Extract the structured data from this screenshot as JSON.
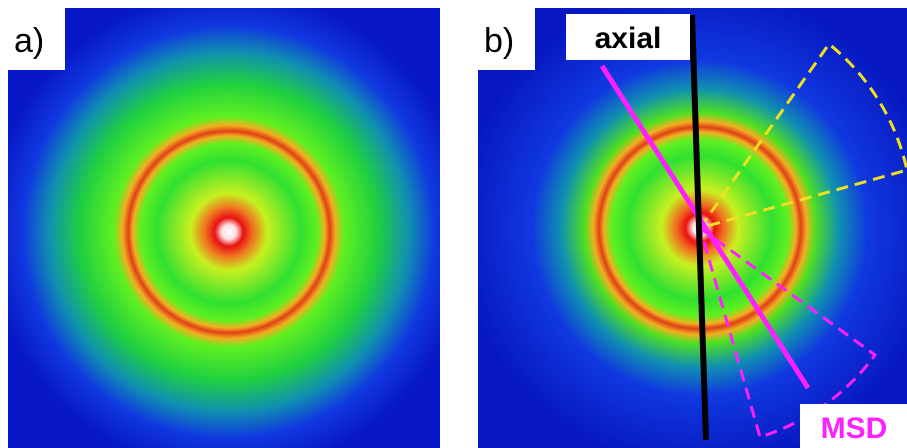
{
  "panels": [
    {
      "label": "a)"
    },
    {
      "label": "b)",
      "annotations": [
        "axial",
        "MSD"
      ]
    }
  ]
}
